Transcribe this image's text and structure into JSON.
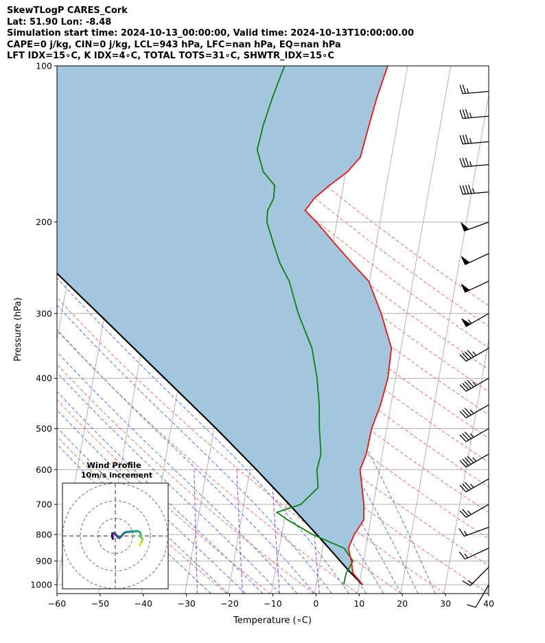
{
  "header": {
    "line1": "SkewTLogP CARES_Cork",
    "line2": "Lat: 51.90   Lon: -8.48",
    "line3": "Simulation start time: 2024-10-13_00:00:00, Valid time: 2024-10-13T10:00:00.00",
    "line4": "CAPE=0 j/kg, CIN=0 j/kg, LCL=943 hPa, LFC=nan hPa, EQ=nan hPa",
    "line5": "LFT IDX=15∘C, K IDX=4∘C, TOTAL TOTS=31∘C, SHWTR_IDX=15∘C"
  },
  "colors": {
    "temperature": "#ee1111",
    "dewpoint": "#117a11",
    "parcel": "#000000",
    "fill": "#a3c6df",
    "dry_adiabat": "#f07070",
    "moist_adiabat": "#5a6ee8",
    "mixing_ratio": "#9a40c8",
    "isotherm": "#aaaaaa"
  },
  "chart_data": {
    "type": "skewt",
    "xlabel": "Temperature (∘C)",
    "ylabel": "Pressure (hPa)",
    "xlim": [
      -60,
      40
    ],
    "ylim": [
      1040,
      100
    ],
    "x_ticks": [
      -60,
      -50,
      -40,
      -30,
      -20,
      -10,
      0,
      10,
      20,
      30,
      40
    ],
    "x_tick_labels": [
      "−60",
      "−50",
      "−40",
      "−30",
      "−20",
      "−10",
      "0",
      "10",
      "20",
      "30",
      "40"
    ],
    "y_ticks": [
      1000,
      900,
      800,
      700,
      600,
      500,
      400,
      300,
      200,
      100
    ],
    "y_tick_labels": [
      "1000",
      "900",
      "800",
      "700",
      "600",
      "500",
      "400",
      "300",
      "200",
      "100"
    ],
    "temperature": [
      [
        1000,
        10.8
      ],
      [
        950,
        8.1
      ],
      [
        900,
        7.2
      ],
      [
        850,
        6.0
      ],
      [
        800,
        6.8
      ],
      [
        750,
        8.4
      ],
      [
        700,
        7.8
      ],
      [
        650,
        6.7
      ],
      [
        600,
        5.5
      ],
      [
        560,
        6.3
      ],
      [
        500,
        6.5
      ],
      [
        450,
        7.6
      ],
      [
        400,
        8.2
      ],
      [
        350,
        7.8
      ],
      [
        300,
        4.0
      ],
      [
        260,
        -0.2
      ],
      [
        240,
        -4.8
      ],
      [
        220,
        -9.6
      ],
      [
        200,
        -14.7
      ],
      [
        190,
        -17.8
      ],
      [
        180,
        -16.2
      ],
      [
        170,
        -13.2
      ],
      [
        160,
        -9.6
      ],
      [
        150,
        -7.2
      ],
      [
        130,
        -6.5
      ],
      [
        115,
        -5.8
      ],
      [
        100,
        -4.6
      ]
    ],
    "dewpoint": [
      [
        1000,
        6.4
      ],
      [
        950,
        6.5
      ],
      [
        900,
        7.6
      ],
      [
        850,
        5.0
      ],
      [
        800,
        -2.9
      ],
      [
        750,
        -9.2
      ],
      [
        725,
        -12.0
      ],
      [
        700,
        -6.8
      ],
      [
        650,
        -3.5
      ],
      [
        600,
        -4.5
      ],
      [
        560,
        -4.2
      ],
      [
        500,
        -5.6
      ],
      [
        450,
        -6.6
      ],
      [
        400,
        -8.2
      ],
      [
        350,
        -10.6
      ],
      [
        300,
        -15.2
      ],
      [
        260,
        -18.6
      ],
      [
        240,
        -21.5
      ],
      [
        220,
        -23.8
      ],
      [
        200,
        -26.2
      ],
      [
        190,
        -26.5
      ],
      [
        180,
        -25.6
      ],
      [
        170,
        -25.9
      ],
      [
        160,
        -29.1
      ],
      [
        145,
        -31.4
      ],
      [
        130,
        -31.0
      ],
      [
        115,
        -30.0
      ],
      [
        100,
        -28.5
      ]
    ],
    "parcel": [
      [
        1000,
        10.8
      ],
      [
        943,
        7.2
      ],
      [
        850,
        1.5
      ],
      [
        800,
        -1.9
      ],
      [
        700,
        -9.5
      ],
      [
        600,
        -18.5
      ],
      [
        500,
        -29.5
      ],
      [
        400,
        -43.5
      ],
      [
        300,
        -61.5
      ],
      [
        250,
        -73.0
      ],
      [
        200,
        -86.5
      ],
      [
        150,
        -103.0
      ],
      [
        100,
        -125.0
      ]
    ],
    "dry_adiabats_K": [
      250,
      260,
      270,
      280,
      290,
      300,
      310,
      320,
      330,
      340,
      350,
      360,
      370,
      380,
      390,
      400,
      410,
      420,
      430
    ],
    "moist_adiabats_C": [
      -24,
      -20,
      -16,
      -12,
      -8,
      -4,
      0,
      4,
      8,
      12,
      16,
      20,
      24,
      28
    ],
    "mixing_ratios_gkg": [
      0.4,
      1,
      2,
      4
    ],
    "wind_barbs": [
      {
        "p": 1000,
        "dir": 210,
        "speed_kt": 12
      },
      {
        "p": 925,
        "dir": 225,
        "speed_kt": 15
      },
      {
        "p": 850,
        "dir": 245,
        "speed_kt": 15
      },
      {
        "p": 775,
        "dir": 250,
        "speed_kt": 15
      },
      {
        "p": 700,
        "dir": 240,
        "speed_kt": 25
      },
      {
        "p": 625,
        "dir": 240,
        "speed_kt": 35
      },
      {
        "p": 560,
        "dir": 240,
        "speed_kt": 45
      },
      {
        "p": 500,
        "dir": 240,
        "speed_kt": 35
      },
      {
        "p": 450,
        "dir": 240,
        "speed_kt": 35
      },
      {
        "p": 400,
        "dir": 240,
        "speed_kt": 45
      },
      {
        "p": 350,
        "dir": 240,
        "speed_kt": 45
      },
      {
        "p": 300,
        "dir": 240,
        "speed_kt": 55
      },
      {
        "p": 260,
        "dir": 245,
        "speed_kt": 50
      },
      {
        "p": 230,
        "dir": 245,
        "speed_kt": 50
      },
      {
        "p": 200,
        "dir": 250,
        "speed_kt": 50
      },
      {
        "p": 175,
        "dir": 265,
        "speed_kt": 45
      },
      {
        "p": 155,
        "dir": 265,
        "speed_kt": 35
      },
      {
        "p": 140,
        "dir": 265,
        "speed_kt": 35
      },
      {
        "p": 125,
        "dir": 265,
        "speed_kt": 35
      },
      {
        "p": 112,
        "dir": 265,
        "speed_kt": 25
      }
    ],
    "hodograph": {
      "title": "Wind Profile",
      "subtitle": "10m/s increment",
      "rings_ms": [
        10,
        20,
        30
      ],
      "uv_ms": [
        [
          -1.4,
          -1.6
        ],
        [
          -1.8,
          -0.2
        ],
        [
          -1.7,
          1.5
        ],
        [
          -0.6,
          1.6
        ],
        [
          0.6,
          0.4
        ],
        [
          1.4,
          -0.8
        ],
        [
          2.4,
          -1.2
        ],
        [
          3.6,
          0.0
        ],
        [
          4.8,
          1.6
        ],
        [
          6.2,
          2.2
        ],
        [
          8.4,
          2.4
        ],
        [
          10.5,
          2.6
        ],
        [
          12.5,
          2.8
        ],
        [
          14.0,
          2.2
        ],
        [
          14.6,
          0.6
        ],
        [
          14.6,
          -0.4
        ],
        [
          15.2,
          -1.2
        ],
        [
          15.6,
          -2.0
        ],
        [
          15.2,
          -3.0
        ],
        [
          14.5,
          -4.4
        ],
        [
          14.0,
          -5.2
        ]
      ]
    }
  }
}
